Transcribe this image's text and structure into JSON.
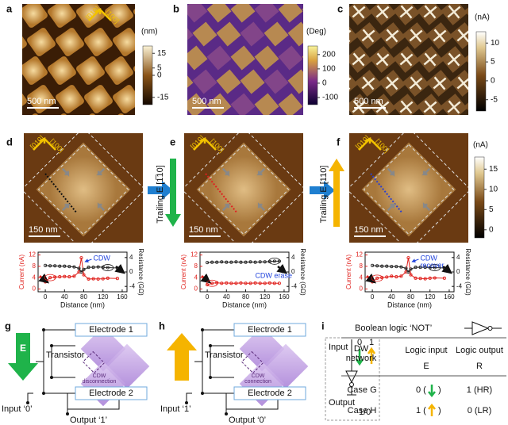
{
  "figure": {
    "a": {
      "label": "a",
      "directions": [
        "[010]",
        "[100]"
      ],
      "scale": "500 nm",
      "colorbar": {
        "unit": "(nm)",
        "lim": [
          -20,
          20
        ],
        "ticks": [
          15,
          5,
          0,
          -15
        ]
      }
    },
    "b": {
      "label": "b",
      "scale": "500 nm",
      "colorbar": {
        "unit": "(Deg)",
        "lim": [
          -150,
          260
        ],
        "ticks": [
          200,
          100,
          0,
          -100
        ]
      }
    },
    "c": {
      "label": "c",
      "scale": "500 nm",
      "colorbar": {
        "unit": "(nA)",
        "lim": [
          -8,
          13
        ],
        "ticks": [
          10,
          5,
          0,
          -5
        ]
      }
    },
    "d": {
      "label": "d",
      "directions": [
        "[010]",
        "[100]"
      ],
      "scale": "150 nm"
    },
    "e": {
      "label": "e",
      "directions": [
        "[010]",
        "[100]"
      ],
      "scale": "150 nm",
      "field": "Trailing E [1̅10]"
    },
    "f": {
      "label": "f",
      "directions": [
        "[010]",
        "[100]"
      ],
      "scale": "150 nm",
      "field": "Trailing E [110]",
      "colorbar": {
        "unit": "(nA)",
        "lim": [
          -2,
          18
        ],
        "ticks": [
          15,
          10,
          5,
          0
        ]
      }
    },
    "g": {
      "label": "g",
      "electrode1": "Electrode 1",
      "field": "E",
      "transistor": "Transistor",
      "state": [
        "CDW",
        "disconnection"
      ],
      "input": "Input ‘0’",
      "electrode2": "Electrode 2",
      "output": "Output ‘1’"
    },
    "h": {
      "label": "h",
      "electrode1": "Electrode 1",
      "transistor": "Transistor",
      "state": [
        "CDW",
        "connection"
      ],
      "input": "Input ‘1’",
      "electrode2": "Electrode 2",
      "output": "Output ‘0’"
    },
    "i": {
      "label": "i",
      "input": "Input",
      "levels": [
        "0",
        "1"
      ],
      "output": "Output",
      "output_value": "1/0",
      "title": "Boolean logic ‘NOT’",
      "dw_network": [
        "DW",
        "network"
      ],
      "logic_input": "Logic input",
      "logic_output": "Logic output",
      "input_symbol": "E",
      "output_symbol": "R",
      "rows": [
        [
          "Case G",
          "0 (",
          ")",
          "1 (HR)"
        ],
        [
          "Case H",
          "1 (",
          ")",
          "0 (LR)"
        ]
      ]
    }
  },
  "chart_data": [
    {
      "type": "line",
      "xlabel": "Distance (nm)",
      "ylabel": "Current (nA)",
      "y2label": "Resistance (GΩ)",
      "annotations": [
        "CDW"
      ],
      "x": [
        0,
        10,
        20,
        30,
        40,
        50,
        60,
        70,
        75,
        80,
        90,
        100,
        110,
        120,
        130,
        150
      ],
      "xlim": [
        -15,
        170
      ],
      "xticks": [
        0,
        40,
        80,
        120,
        160
      ],
      "ylim": [
        -1,
        13
      ],
      "yticks": [
        0,
        4,
        8,
        12
      ],
      "y2lim": [
        -5.5,
        5.5
      ],
      "y2ticks": [
        -4,
        0,
        4
      ],
      "series": [
        {
          "color": "#e0201c",
          "values": [
            2.5,
            4,
            4.2,
            4.3,
            4.4,
            4.3,
            4.5,
            6,
            11,
            5,
            3.5,
            3.6,
            3.5,
            3.6,
            3.8,
            3.7
          ]
        },
        {
          "color": "#222222",
          "axis": "y2",
          "values": [
            1.8,
            1.7,
            1.7,
            1.6,
            1.6,
            1.5,
            1.4,
            1.0,
            0,
            0.7,
            1.3,
            1.3,
            1.4,
            1.3,
            1.2,
            1.1
          ]
        }
      ]
    },
    {
      "type": "line",
      "xlabel": "Distance (nm)",
      "ylabel": "Current (nA)",
      "y2label": "Resistance (GΩ)",
      "annotations": [
        "CDW erase"
      ],
      "x": [
        0,
        10,
        20,
        30,
        40,
        50,
        60,
        70,
        80,
        90,
        100,
        110,
        120,
        130,
        140,
        150
      ],
      "xlim": [
        -15,
        170
      ],
      "xticks": [
        0,
        40,
        80,
        120,
        160
      ],
      "ylim": [
        -1,
        13
      ],
      "yticks": [
        0,
        4,
        8,
        12
      ],
      "y2lim": [
        -5.5,
        5.5
      ],
      "y2ticks": [
        -4,
        0,
        4
      ],
      "series": [
        {
          "color": "#e0201c",
          "values": [
            1.5,
            2,
            2.2,
            2,
            2.1,
            2,
            2,
            2.1,
            2,
            2,
            2.1,
            2,
            2,
            2.1,
            2,
            2
          ]
        },
        {
          "color": "#222222",
          "axis": "y2",
          "values": [
            2.6,
            2.7,
            2.7,
            2.8,
            2.7,
            2.7,
            2.8,
            2.7,
            2.7,
            2.8,
            2.7,
            2.8,
            2.8,
            2.9,
            3.0,
            3.0
          ]
        }
      ]
    },
    {
      "type": "line",
      "xlabel": "Distance (nm)",
      "ylabel": "Current (nA)",
      "y2label": "Resistance (GΩ)",
      "annotations": [
        "CDW",
        "recover"
      ],
      "x": [
        0,
        10,
        20,
        30,
        40,
        50,
        60,
        70,
        75,
        80,
        90,
        100,
        110,
        120,
        130,
        150
      ],
      "xlim": [
        -15,
        170
      ],
      "xticks": [
        0,
        40,
        80,
        120,
        160
      ],
      "ylim": [
        -1,
        13
      ],
      "yticks": [
        0,
        4,
        8,
        12
      ],
      "y2lim": [
        -5.5,
        5.5
      ],
      "y2ticks": [
        -4,
        0,
        4
      ],
      "series": [
        {
          "color": "#e0201c",
          "values": [
            2.5,
            3.8,
            4,
            4.2,
            4.5,
            4.3,
            4.5,
            6,
            11,
            5,
            3.8,
            3.7,
            3.6,
            3.8,
            3.9,
            3.8
          ]
        },
        {
          "color": "#222222",
          "axis": "y2",
          "values": [
            1.8,
            1.7,
            1.6,
            1.6,
            1.5,
            1.5,
            1.4,
            1.0,
            0,
            0.8,
            1.3,
            1.3,
            1.3,
            1.2,
            1.2,
            1.1
          ]
        }
      ]
    }
  ]
}
